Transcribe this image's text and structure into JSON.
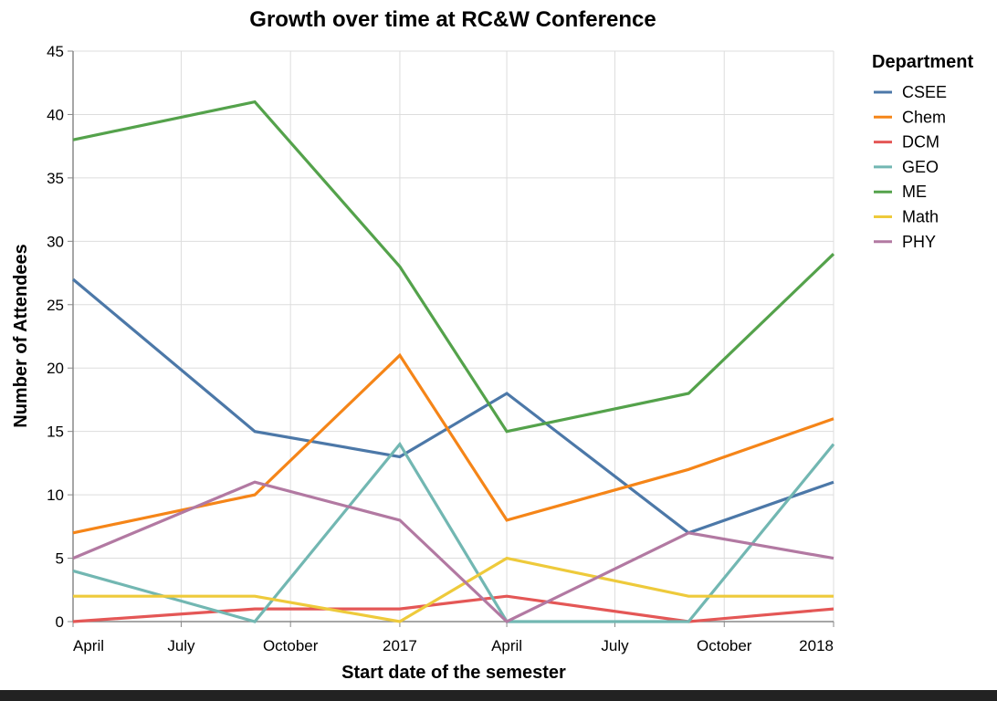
{
  "chart_data": {
    "type": "line",
    "title": "Growth over time at RC&W Conference",
    "xlabel": "Start date of the semester",
    "ylabel": "Number of Attendees",
    "ylim": [
      0,
      45
    ],
    "y_ticks": [
      0,
      5,
      10,
      15,
      20,
      25,
      30,
      35,
      40,
      45
    ],
    "xlim": [
      "2016-04-01",
      "2018-01-01"
    ],
    "x_ticks": [
      {
        "date": "2016-04-01",
        "label": "April"
      },
      {
        "date": "2016-07-01",
        "label": "July"
      },
      {
        "date": "2016-10-01",
        "label": "October"
      },
      {
        "date": "2017-01-01",
        "label": "2017"
      },
      {
        "date": "2017-04-01",
        "label": "April"
      },
      {
        "date": "2017-07-01",
        "label": "July"
      },
      {
        "date": "2017-10-01",
        "label": "October"
      },
      {
        "date": "2018-01-01",
        "label": "2018"
      }
    ],
    "x": [
      "2016-04-01",
      "2016-09-01",
      "2017-01-01",
      "2017-04-01",
      "2017-09-01",
      "2018-01-01"
    ],
    "grid": true,
    "legend": {
      "title": "Department",
      "position": "right"
    },
    "series": [
      {
        "name": "CSEE",
        "color": "#4c78a8",
        "values": [
          27,
          15,
          13,
          18,
          7,
          11
        ]
      },
      {
        "name": "Chem",
        "color": "#f58518",
        "values": [
          7,
          10,
          21,
          8,
          12,
          16
        ]
      },
      {
        "name": "DCM",
        "color": "#e45756",
        "values": [
          0,
          1,
          1,
          2,
          0,
          1
        ]
      },
      {
        "name": "GEO",
        "color": "#72b7b2",
        "values": [
          4,
          0,
          14,
          0,
          0,
          14
        ]
      },
      {
        "name": "ME",
        "color": "#54a24b",
        "values": [
          38,
          41,
          28,
          15,
          18,
          29
        ]
      },
      {
        "name": "Math",
        "color": "#eeca3b",
        "values": [
          2,
          2,
          0,
          5,
          2,
          2
        ]
      },
      {
        "name": "PHY",
        "color": "#b279a2",
        "values": [
          5,
          11,
          8,
          0,
          7,
          5
        ]
      }
    ]
  }
}
